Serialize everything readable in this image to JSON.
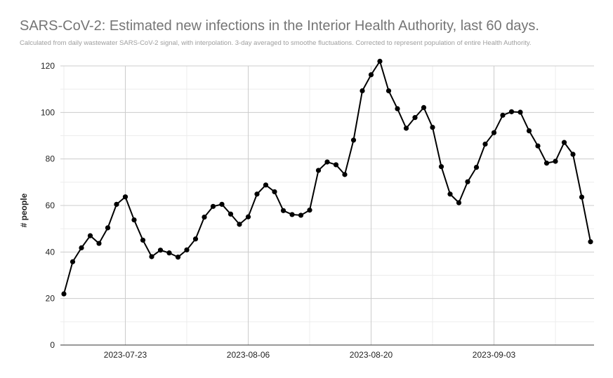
{
  "title": "SARS-CoV-2: Estimated new infections in the Interior Health Authority, last 60 days.",
  "subtitle": "Calculated from daily wastewater SARS-CoV-2 signal, with interpolation. 3-day averaged to smoothe fluctuations. Corrected to represent population of entire Health Authority.",
  "chart_data": {
    "type": "line",
    "title": "SARS-CoV-2: Estimated new infections in the Interior Health Authority, last 60 days.",
    "subtitle": "Calculated from daily wastewater SARS-CoV-2 signal, with interpolation. 3-day averaged to smoothe fluctuations. Corrected to represent population of entire Health Authority.",
    "xlabel": "",
    "ylabel": "# people",
    "ylim": [
      0,
      120
    ],
    "yticks": [
      0,
      20,
      40,
      60,
      80,
      100,
      120
    ],
    "xticks": [
      "2023-07-23",
      "2023-08-06",
      "2023-08-20",
      "2023-09-03"
    ],
    "x_start": "2023-07-16",
    "x_end": "2023-09-14",
    "grid": true,
    "line_color": "#000000",
    "series": [
      {
        "x": [
          "2023-07-16",
          "2023-07-17",
          "2023-07-18",
          "2023-07-19",
          "2023-07-20",
          "2023-07-21",
          "2023-07-22",
          "2023-07-23",
          "2023-07-24",
          "2023-07-25",
          "2023-07-26",
          "2023-07-27",
          "2023-07-28",
          "2023-07-29",
          "2023-07-30",
          "2023-07-31",
          "2023-08-01",
          "2023-08-02",
          "2023-08-03",
          "2023-08-04",
          "2023-08-05",
          "2023-08-06",
          "2023-08-07",
          "2023-08-08",
          "2023-08-09",
          "2023-08-10",
          "2023-08-11",
          "2023-08-12",
          "2023-08-13",
          "2023-08-14",
          "2023-08-15",
          "2023-08-16",
          "2023-08-17",
          "2023-08-18",
          "2023-08-19",
          "2023-08-20",
          "2023-08-21",
          "2023-08-22",
          "2023-08-23",
          "2023-08-24",
          "2023-08-25",
          "2023-08-26",
          "2023-08-27",
          "2023-08-28",
          "2023-08-29",
          "2023-08-30",
          "2023-08-31",
          "2023-09-01",
          "2023-09-02",
          "2023-09-03",
          "2023-09-04",
          "2023-09-05",
          "2023-09-06",
          "2023-09-07",
          "2023-09-08",
          "2023-09-09",
          "2023-09-10",
          "2023-09-11",
          "2023-09-12",
          "2023-09-13",
          "2023-09-14"
        ],
        "values": [
          22,
          35.8,
          41.8,
          47,
          43.7,
          50.4,
          60.5,
          63.7,
          53.8,
          45.1,
          38,
          40.8,
          39.6,
          37.8,
          40.9,
          45.6,
          55,
          59.6,
          60.5,
          56.3,
          51.9,
          55.1,
          64.9,
          68.8,
          65.9,
          57.8,
          56.1,
          55.8,
          58,
          75.1,
          78.7,
          77.5,
          73.3,
          88.1,
          109.3,
          116.2,
          122,
          109.3,
          101.6,
          93.2,
          97.8,
          102.1,
          93.6,
          76.7,
          64.9,
          61.2,
          70.2,
          76.4,
          86.4,
          91.3,
          98.8,
          100.3,
          100.1,
          92.1,
          85.6,
          78.2,
          79,
          87.1,
          82,
          63.6,
          44.4
        ]
      }
    ]
  }
}
